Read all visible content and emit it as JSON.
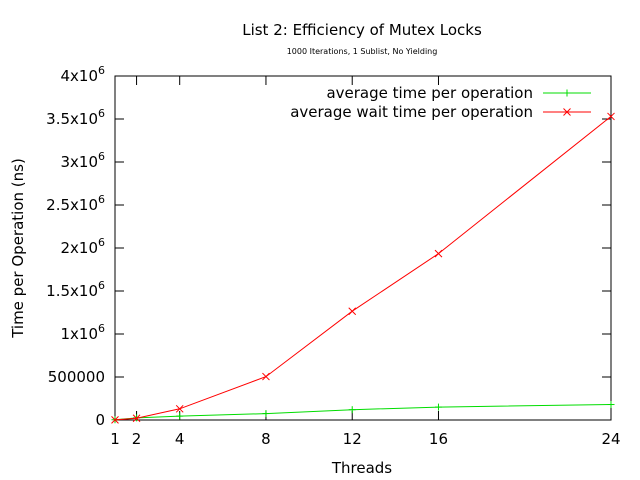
{
  "chart_data": {
    "type": "line",
    "title": "List 2: Efficiency of Mutex Locks",
    "subtitle": "1000 Iterations, 1 Sublist, No Yielding",
    "xlabel": "Threads",
    "ylabel": "Time per Operation (ns)",
    "xlim": [
      1,
      24
    ],
    "ylim": [
      0,
      4000000
    ],
    "grid": false,
    "legend_position": "top-right",
    "x_ticks": [
      {
        "value": 1,
        "label": "1"
      },
      {
        "value": 2,
        "label": "2"
      },
      {
        "value": 4,
        "label": "4"
      },
      {
        "value": 8,
        "label": "8"
      },
      {
        "value": 12,
        "label": "12"
      },
      {
        "value": 16,
        "label": "16"
      },
      {
        "value": 24,
        "label": "24"
      }
    ],
    "y_ticks": [
      {
        "value": 0,
        "label": "0",
        "sup": ""
      },
      {
        "value": 500000,
        "label": "500000",
        "sup": ""
      },
      {
        "value": 1000000,
        "label": "1x10",
        "sup": "6"
      },
      {
        "value": 1500000,
        "label": "1.5x10",
        "sup": "6"
      },
      {
        "value": 2000000,
        "label": "2x10",
        "sup": "6"
      },
      {
        "value": 2500000,
        "label": "2.5x10",
        "sup": "6"
      },
      {
        "value": 3000000,
        "label": "3x10",
        "sup": "6"
      },
      {
        "value": 3500000,
        "label": "3.5x10",
        "sup": "6"
      },
      {
        "value": 4000000,
        "label": "4x10",
        "sup": "6"
      }
    ],
    "series": [
      {
        "name": "average time per operation",
        "color": "#00dd00",
        "marker": "plus",
        "x": [
          1,
          2,
          4,
          8,
          12,
          16,
          24
        ],
        "y": [
          3000,
          25000,
          45000,
          75000,
          120000,
          150000,
          180000
        ]
      },
      {
        "name": "average wait time per operation",
        "color": "#ff0000",
        "marker": "cross",
        "x": [
          1,
          2,
          4,
          8,
          12,
          16,
          24
        ],
        "y": [
          1000,
          20000,
          130000,
          505000,
          1265000,
          1935000,
          3530000
        ]
      }
    ]
  }
}
